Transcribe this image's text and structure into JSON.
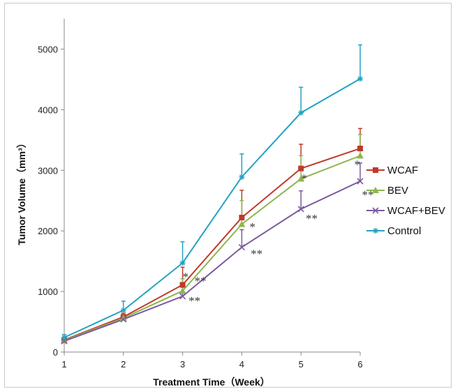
{
  "chart_data": {
    "type": "line",
    "title": "",
    "xlabel": "Treatment Time（Week）",
    "ylabel": "Tumor Volume（mm³）",
    "x": [
      1,
      2,
      3,
      4,
      5,
      6
    ],
    "xlim": [
      1,
      6
    ],
    "ylim": [
      0,
      5500
    ],
    "yticks": [
      0,
      1000,
      2000,
      3000,
      4000,
      5000
    ],
    "grid": false,
    "legend_position": "right",
    "series": [
      {
        "name": "WCAF",
        "color": "#c0392b",
        "marker": "square",
        "values": [
          200,
          580,
          1110,
          2220,
          3030,
          3360
        ],
        "errors": [
          40,
          60,
          290,
          450,
          400,
          330
        ]
      },
      {
        "name": "BEV",
        "color": "#8db64e",
        "marker": "triangle",
        "values": [
          190,
          560,
          1010,
          2110,
          2860,
          3240
        ],
        "errors": [
          40,
          60,
          200,
          390,
          380,
          350
        ]
      },
      {
        "name": "WCAF+BEV",
        "color": "#7a5a9e",
        "marker": "x",
        "values": [
          180,
          540,
          920,
          1730,
          2360,
          2820
        ],
        "errors": [
          40,
          50,
          150,
          290,
          300,
          300
        ]
      },
      {
        "name": "Control",
        "color": "#22a3c0",
        "marker": "star",
        "values": [
          240,
          690,
          1470,
          2890,
          3950,
          4510
        ],
        "errors": [
          50,
          150,
          350,
          380,
          420,
          560
        ]
      }
    ],
    "annotations": [
      {
        "text": "*",
        "x": 3,
        "y": 1180
      },
      {
        "text": "**",
        "x": 3.2,
        "y": 1110
      },
      {
        "text": "**",
        "x": 3.1,
        "y": 780
      },
      {
        "text": "*",
        "x": 4.13,
        "y": 2000
      },
      {
        "text": "**",
        "x": 4.15,
        "y": 1560
      },
      {
        "text": "*",
        "x": 5,
        "y": 2800
      },
      {
        "text": "**",
        "x": 5.08,
        "y": 2140
      },
      {
        "text": "*",
        "x": 5.9,
        "y": 3030
      },
      {
        "text": "**",
        "x": 6.03,
        "y": 2530
      }
    ]
  }
}
